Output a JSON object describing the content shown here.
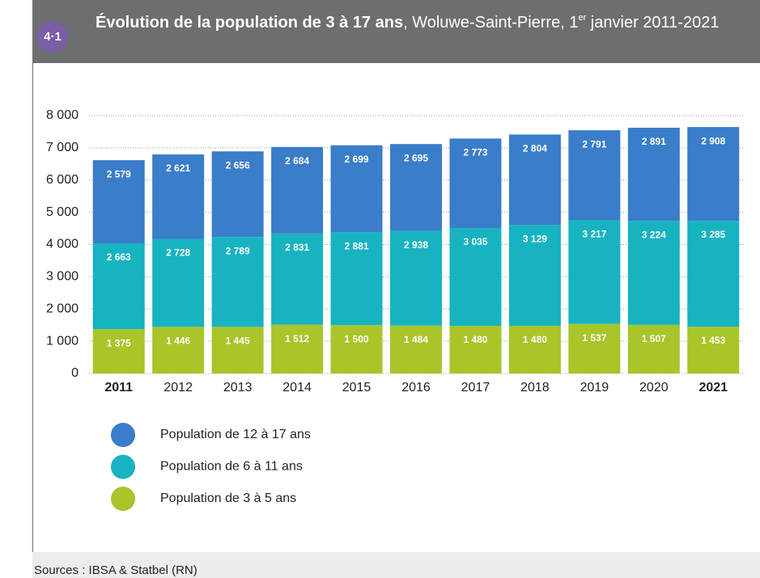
{
  "header": {
    "badge": "4·1",
    "title": "Évolution de la population de 3 à 17 ans",
    "subtitle_before_sup": ", Woluwe-Saint-Pierre, 1",
    "subtitle_sup": "er",
    "subtitle_after_sup": " janvier 2011-2021"
  },
  "chart_data": {
    "type": "stacked_bar",
    "categories": [
      "2011",
      "2012",
      "2013",
      "2014",
      "2015",
      "2016",
      "2017",
      "2018",
      "2019",
      "2020",
      "2021"
    ],
    "series": [
      {
        "name": "Population de 3 à 5 ans",
        "color": "#a8c52a",
        "values": [
          1375,
          1446,
          1445,
          1512,
          1500,
          1484,
          1480,
          1480,
          1537,
          1507,
          1453
        ],
        "value_labels": [
          "1 375",
          "1 446",
          "1 445",
          "1 512",
          "1 500",
          "1 484",
          "1 480",
          "1 480",
          "1 537",
          "1 507",
          "1 453"
        ]
      },
      {
        "name": "Population de 6 à 11 ans",
        "color": "#17b3c1",
        "values": [
          2663,
          2728,
          2789,
          2831,
          2881,
          2938,
          3035,
          3129,
          3217,
          3224,
          3285
        ],
        "value_labels": [
          "2 663",
          "2 728",
          "2 789",
          "2 831",
          "2 881",
          "2 938",
          "3 035",
          "3 129",
          "3 217",
          "3 224",
          "3 285"
        ]
      },
      {
        "name": "Population de 12 à 17 ans",
        "color": "#3a7dc9",
        "values": [
          2579,
          2621,
          2656,
          2684,
          2699,
          2695,
          2773,
          2804,
          2791,
          2891,
          2908
        ],
        "value_labels": [
          "2 579",
          "2 621",
          "2 656",
          "2 684",
          "2 699",
          "2 695",
          "2 773",
          "2 804",
          "2 791",
          "2 891",
          "2 908"
        ]
      }
    ],
    "ylim": [
      0,
      8000
    ],
    "yticks": [
      0,
      {
        "value": 1000,
        "label": "1 000"
      },
      {
        "value": 2000,
        "label": "2 000"
      },
      {
        "value": 3000,
        "label": "3 000"
      },
      {
        "value": 4000,
        "label": "4 000"
      },
      {
        "value": 5000,
        "label": "5 000"
      },
      {
        "value": 6000,
        "label": "6 000"
      },
      {
        "value": 7000,
        "label": "7 000"
      },
      {
        "value": 8000,
        "label": "8 000"
      }
    ],
    "grid": true
  },
  "footer": {
    "source": "Sources : IBSA & Statbel (RN)"
  }
}
